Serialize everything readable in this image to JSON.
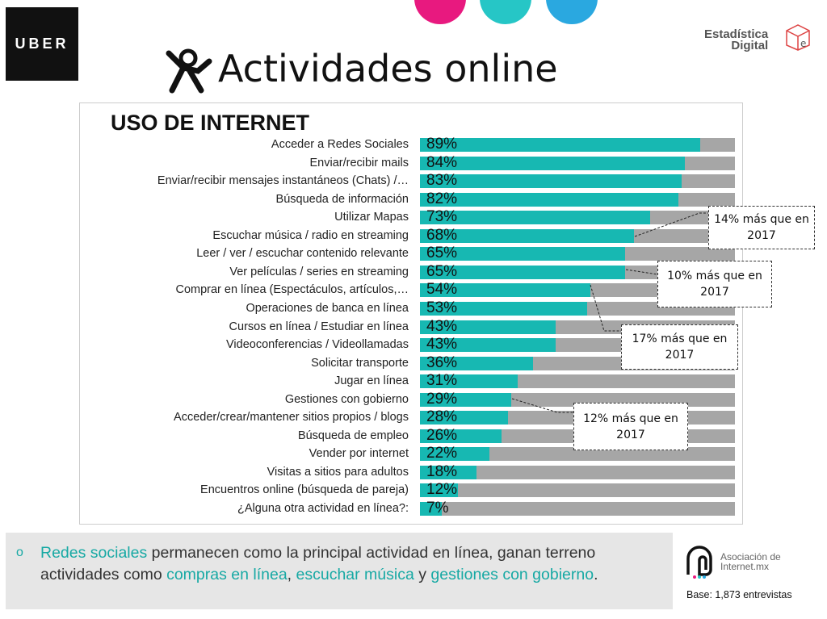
{
  "header": {
    "logo_left": "UBER",
    "title": "Actividades online",
    "logo_right": "Estadística Digital"
  },
  "colors": {
    "primary": "#17b8b2",
    "remainder": "#a6a6a6",
    "pink": "#e8197f",
    "teal": "#26c6c6",
    "blue": "#2aa8e0"
  },
  "chart_data": {
    "type": "bar",
    "orientation": "horizontal",
    "title": "USO DE INTERNET",
    "xlim": [
      0,
      100
    ],
    "unit": "%",
    "categories": [
      "Acceder a Redes Sociales",
      "Enviar/recibir mails",
      "Enviar/recibir mensajes instantáneos (Chats) /…",
      "Búsqueda de información",
      "Utilizar Mapas",
      "Escuchar música / radio en streaming",
      "Leer / ver / escuchar contenido relevante",
      "Ver películas / series en streaming",
      "Comprar en línea (Espectáculos, artículos,…",
      "Operaciones de banca en línea",
      "Cursos en línea / Estudiar en línea",
      "Videoconferencias / Videollamadas",
      "Solicitar transporte",
      "Jugar en línea",
      "Gestiones con gobierno",
      "Acceder/crear/mantener sitios propios / blogs",
      "Búsqueda de empleo",
      "Vender por internet",
      "Visitas a sitios para adultos",
      "Encuentros online (búsqueda de pareja)",
      "¿Alguna otra actividad en línea?:"
    ],
    "values": [
      89,
      84,
      83,
      82,
      73,
      68,
      65,
      65,
      54,
      53,
      43,
      43,
      36,
      31,
      29,
      28,
      26,
      22,
      18,
      12,
      7
    ],
    "annotations": [
      {
        "text": "14% más que en 2017",
        "category_index": 5
      },
      {
        "text": "10% más que en 2017",
        "category_index": 7
      },
      {
        "text": "17% más que en 2017",
        "category_index": 8
      },
      {
        "text": "12% más que en 2017",
        "category_index": 14
      }
    ]
  },
  "footer": {
    "bullet": "o",
    "text_parts": [
      {
        "t": "Redes sociales",
        "hl": true
      },
      {
        "t": " permanecen como la principal actividad en línea, ganan terreno actividades como ",
        "hl": false
      },
      {
        "t": "compras en línea",
        "hl": true
      },
      {
        "t": ", ",
        "hl": false
      },
      {
        "t": "escuchar música",
        "hl": true
      },
      {
        "t": " y ",
        "hl": false
      },
      {
        "t": "gestiones con gobierno",
        "hl": true
      },
      {
        "t": ".",
        "hl": false
      }
    ],
    "logo": "Asociación de Internet.mx",
    "base": "Base: 1,873 entrevistas"
  }
}
